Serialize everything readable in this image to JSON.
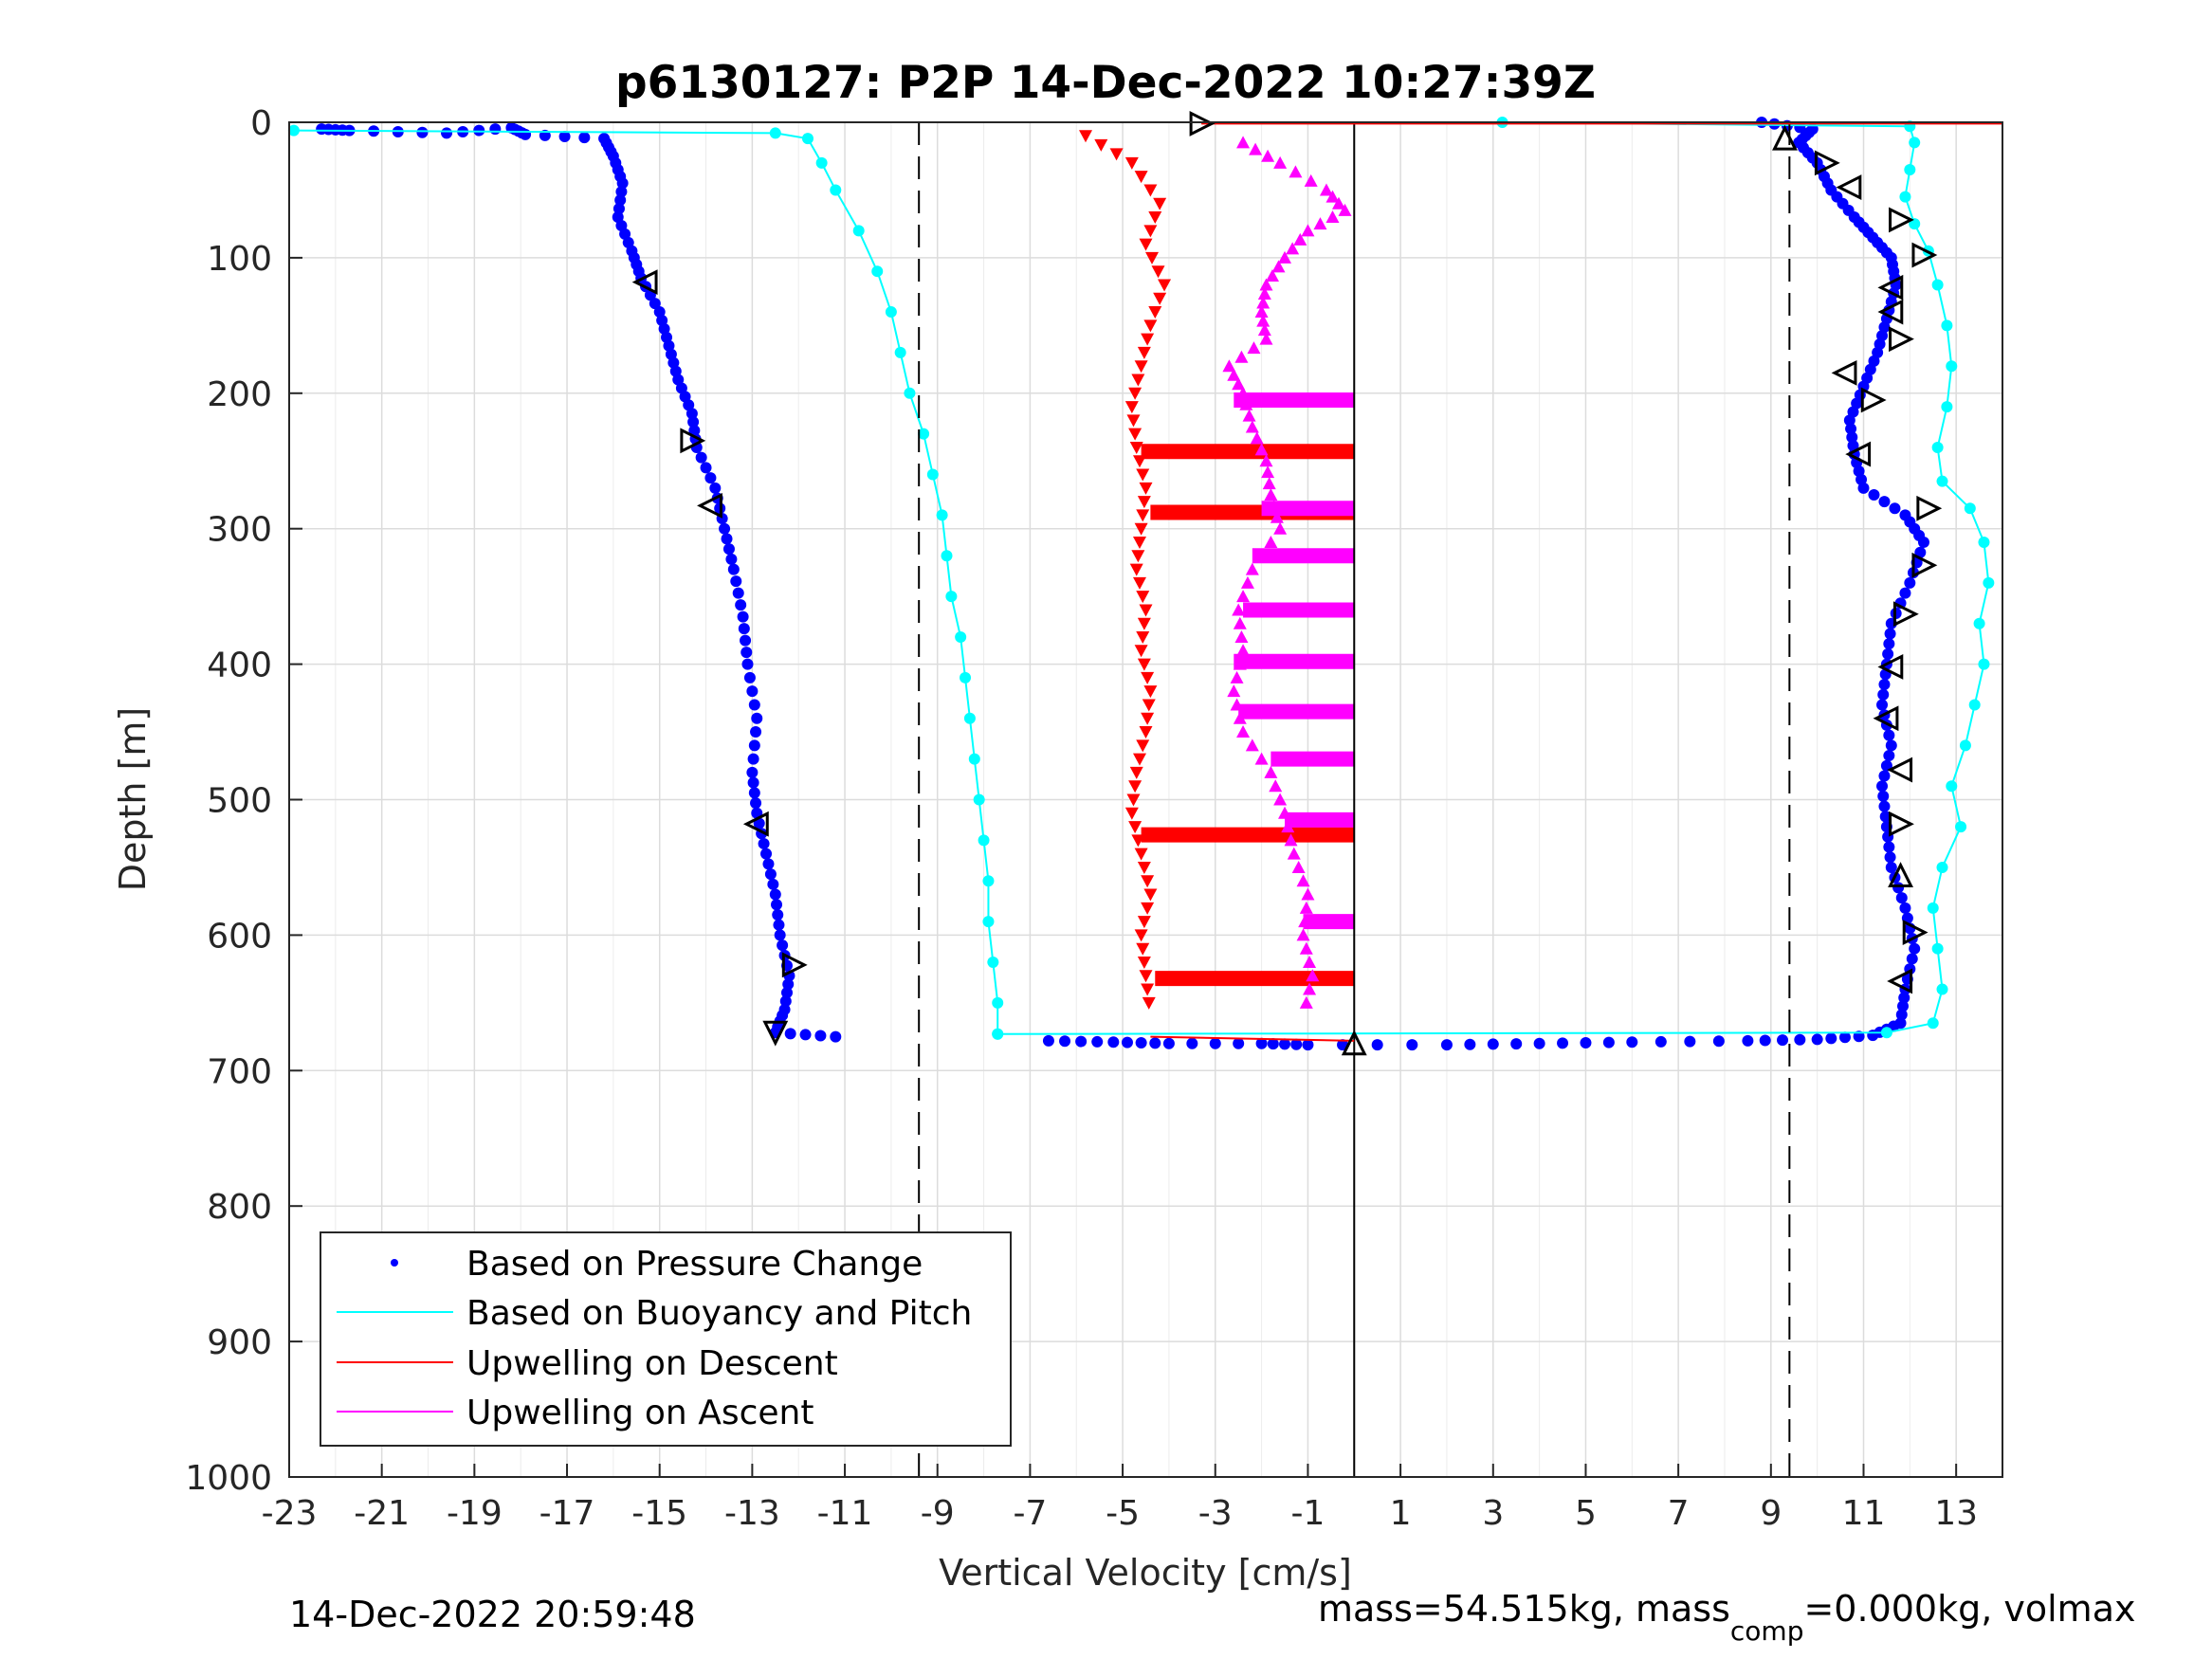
{
  "chart_data": {
    "type": "scatter",
    "title": "p6130127: P2P 14-Dec-2022 10:27:39Z",
    "xlabel": "Vertical Velocity [cm/s]",
    "ylabel": "Depth [m]",
    "xlim": [
      -23,
      14
    ],
    "ylim": [
      0,
      1000
    ],
    "y_reversed": true,
    "grid": true,
    "x_ticks": [
      -23,
      -21,
      -19,
      -17,
      -15,
      -13,
      -11,
      -9,
      -7,
      -5,
      -3,
      -1,
      1,
      3,
      5,
      7,
      9,
      11,
      13
    ],
    "y_ticks": [
      0,
      100,
      200,
      300,
      400,
      500,
      600,
      700,
      800,
      900,
      1000
    ],
    "reference_lines": [
      {
        "x": -9.4,
        "style": "dashed",
        "color": "#000000"
      },
      {
        "x": 9.4,
        "style": "dashed",
        "color": "#000000"
      },
      {
        "x": 0,
        "style": "solid",
        "color": "#000000"
      }
    ],
    "legend": {
      "placement": "bottom-left",
      "entries": [
        {
          "label": "Based on Pressure Change",
          "color": "#0000ff",
          "marker": "dot"
        },
        {
          "label": "Based on Buoyancy and Pitch",
          "color": "#00ffff",
          "marker": "line"
        },
        {
          "label": "Upwelling on Descent",
          "color": "#ff0000",
          "marker": "line"
        },
        {
          "label": "Upwelling on Ascent",
          "color": "#ff00ff",
          "marker": "line"
        }
      ]
    },
    "series": [
      {
        "name": "Based on Pressure Change",
        "color": "#0000ff",
        "role": "descent",
        "points": [
          [
            -22.3,
            5
          ],
          [
            -21.7,
            6
          ],
          [
            -19.6,
            8
          ],
          [
            -18.2,
            4
          ],
          [
            -17.9,
            9
          ],
          [
            -16.2,
            12
          ],
          [
            -16.0,
            25
          ],
          [
            -15.8,
            45
          ],
          [
            -15.9,
            70
          ],
          [
            -15.6,
            95
          ],
          [
            -15.4,
            115
          ],
          [
            -15.0,
            140
          ],
          [
            -14.8,
            165
          ],
          [
            -14.6,
            190
          ],
          [
            -14.3,
            215
          ],
          [
            -14.2,
            240
          ],
          [
            -13.8,
            270
          ],
          [
            -13.6,
            300
          ],
          [
            -13.4,
            330
          ],
          [
            -13.2,
            365
          ],
          [
            -13.1,
            400
          ],
          [
            -12.9,
            440
          ],
          [
            -13.0,
            480
          ],
          [
            -12.9,
            510
          ],
          [
            -12.7,
            540
          ],
          [
            -12.5,
            570
          ],
          [
            -12.4,
            600
          ],
          [
            -12.2,
            630
          ],
          [
            -12.3,
            655
          ],
          [
            -12.5,
            672
          ],
          [
            -11.2,
            675
          ]
        ]
      },
      {
        "name": "Based on Pressure Change",
        "color": "#0000ff",
        "role": "ascent",
        "points": [
          [
            -6.6,
            678
          ],
          [
            -5.2,
            679
          ],
          [
            -4.0,
            680
          ],
          [
            -2.0,
            680
          ],
          [
            -1.0,
            681
          ],
          [
            2.0,
            681
          ],
          [
            4.0,
            680
          ],
          [
            6.0,
            679
          ],
          [
            8.5,
            678
          ],
          [
            10.0,
            677
          ],
          [
            11.2,
            674
          ],
          [
            11.8,
            665
          ],
          [
            11.9,
            640
          ],
          [
            12.1,
            610
          ],
          [
            11.9,
            580
          ],
          [
            11.6,
            550
          ],
          [
            11.5,
            520
          ],
          [
            11.4,
            490
          ],
          [
            11.6,
            460
          ],
          [
            11.4,
            430
          ],
          [
            11.5,
            400
          ],
          [
            11.6,
            370
          ],
          [
            12.0,
            340
          ],
          [
            12.3,
            310
          ],
          [
            11.9,
            290
          ],
          [
            11.0,
            270
          ],
          [
            10.8,
            245
          ],
          [
            10.7,
            220
          ],
          [
            11.0,
            195
          ],
          [
            11.3,
            170
          ],
          [
            11.5,
            145
          ],
          [
            11.7,
            120
          ],
          [
            11.6,
            100
          ],
          [
            11.2,
            85
          ],
          [
            10.8,
            70
          ],
          [
            10.3,
            50
          ],
          [
            10.0,
            30
          ],
          [
            9.6,
            15
          ],
          [
            9.9,
            5
          ],
          [
            8.8,
            0
          ]
        ]
      },
      {
        "name": "Based on Buoyancy and Pitch",
        "color": "#00ffff",
        "role": "descent",
        "points": [
          [
            -22.9,
            6
          ],
          [
            -12.5,
            8
          ],
          [
            -11.8,
            12
          ],
          [
            -11.5,
            30
          ],
          [
            -11.2,
            50
          ],
          [
            -10.7,
            80
          ],
          [
            -10.3,
            110
          ],
          [
            -10.0,
            140
          ],
          [
            -9.8,
            170
          ],
          [
            -9.6,
            200
          ],
          [
            -9.3,
            230
          ],
          [
            -9.1,
            260
          ],
          [
            -8.9,
            290
          ],
          [
            -8.8,
            320
          ],
          [
            -8.7,
            350
          ],
          [
            -8.5,
            380
          ],
          [
            -8.4,
            410
          ],
          [
            -8.3,
            440
          ],
          [
            -8.2,
            470
          ],
          [
            -8.1,
            500
          ],
          [
            -8.0,
            530
          ],
          [
            -7.9,
            560
          ],
          [
            -7.9,
            590
          ],
          [
            -7.8,
            620
          ],
          [
            -7.7,
            650
          ],
          [
            -7.7,
            673
          ]
        ]
      },
      {
        "name": "Based on Buoyancy and Pitch",
        "color": "#00ffff",
        "role": "ascent",
        "points": [
          [
            -7.7,
            673
          ],
          [
            11.5,
            672
          ],
          [
            12.5,
            665
          ],
          [
            12.7,
            640
          ],
          [
            12.6,
            610
          ],
          [
            12.5,
            580
          ],
          [
            12.7,
            550
          ],
          [
            13.1,
            520
          ],
          [
            12.9,
            490
          ],
          [
            13.2,
            460
          ],
          [
            13.4,
            430
          ],
          [
            13.6,
            400
          ],
          [
            13.5,
            370
          ],
          [
            13.7,
            340
          ],
          [
            13.6,
            310
          ],
          [
            13.3,
            285
          ],
          [
            12.7,
            265
          ],
          [
            12.6,
            240
          ],
          [
            12.8,
            210
          ],
          [
            12.9,
            180
          ],
          [
            12.8,
            150
          ],
          [
            12.6,
            120
          ],
          [
            12.4,
            95
          ],
          [
            12.1,
            75
          ],
          [
            11.9,
            55
          ],
          [
            12.0,
            35
          ],
          [
            12.1,
            15
          ],
          [
            12.0,
            3
          ],
          [
            3.2,
            0
          ]
        ]
      },
      {
        "name": "Upwelling on Descent",
        "color": "#ff0000",
        "points": [
          [
            -5.8,
            10
          ],
          [
            -4.8,
            30
          ],
          [
            -4.2,
            60
          ],
          [
            -4.5,
            90
          ],
          [
            -4.1,
            120
          ],
          [
            -4.4,
            150
          ],
          [
            -4.6,
            180
          ],
          [
            -4.8,
            210
          ],
          [
            -4.7,
            240
          ],
          [
            -4.5,
            270
          ],
          [
            -4.6,
            300
          ],
          [
            -4.7,
            330
          ],
          [
            -4.5,
            360
          ],
          [
            -4.6,
            390
          ],
          [
            -4.4,
            420
          ],
          [
            -4.5,
            450
          ],
          [
            -4.7,
            480
          ],
          [
            -4.8,
            510
          ],
          [
            -4.6,
            540
          ],
          [
            -4.4,
            570
          ],
          [
            -4.6,
            600
          ],
          [
            -4.5,
            630
          ],
          [
            -4.4,
            660
          ]
        ]
      },
      {
        "name": "Upwelling on Ascent",
        "color": "#ff00ff",
        "points": [
          [
            -2.4,
            15
          ],
          [
            -1.6,
            30
          ],
          [
            -0.6,
            50
          ],
          [
            -0.2,
            65
          ],
          [
            -1.0,
            80
          ],
          [
            -1.5,
            100
          ],
          [
            -1.9,
            120
          ],
          [
            -2.0,
            140
          ],
          [
            -1.9,
            160
          ],
          [
            -2.7,
            180
          ],
          [
            -2.4,
            200
          ],
          [
            -2.2,
            225
          ],
          [
            -1.9,
            250
          ],
          [
            -1.8,
            275
          ],
          [
            -1.6,
            300
          ],
          [
            -2.2,
            330
          ],
          [
            -2.5,
            360
          ],
          [
            -2.4,
            390
          ],
          [
            -2.6,
            420
          ],
          [
            -2.4,
            450
          ],
          [
            -1.8,
            480
          ],
          [
            -1.5,
            510
          ],
          [
            -1.3,
            540
          ],
          [
            -1.0,
            570
          ],
          [
            -1.1,
            600
          ],
          [
            -0.9,
            630
          ],
          [
            -1.1,
            660
          ]
        ]
      }
    ],
    "bursts": [
      {
        "color": "#ff0000",
        "depth": 243,
        "x_from": -4.6,
        "x_to": 0
      },
      {
        "color": "#ff0000",
        "depth": 288,
        "x_from": -4.4,
        "x_to": 0
      },
      {
        "color": "#ff0000",
        "depth": 526,
        "x_from": -4.6,
        "x_to": 0
      },
      {
        "color": "#ff0000",
        "depth": 632,
        "x_from": -4.3,
        "x_to": 0
      },
      {
        "color": "#ff00ff",
        "depth": 205,
        "x_from": -2.6,
        "x_to": 0
      },
      {
        "color": "#ff00ff",
        "depth": 285,
        "x_from": -2.0,
        "x_to": 0
      },
      {
        "color": "#ff00ff",
        "depth": 320,
        "x_from": -2.2,
        "x_to": 0
      },
      {
        "color": "#ff00ff",
        "depth": 360,
        "x_from": -2.4,
        "x_to": 0
      },
      {
        "color": "#ff00ff",
        "depth": 398,
        "x_from": -2.6,
        "x_to": 0
      },
      {
        "color": "#ff00ff",
        "depth": 435,
        "x_from": -2.5,
        "x_to": 0
      },
      {
        "color": "#ff00ff",
        "depth": 470,
        "x_from": -1.8,
        "x_to": 0
      },
      {
        "color": "#ff00ff",
        "depth": 515,
        "x_from": -1.5,
        "x_to": 0
      },
      {
        "color": "#ff00ff",
        "depth": 590,
        "x_from": -1.1,
        "x_to": 0
      }
    ],
    "triangle_markers": [
      [
        -3.3,
        1,
        "right"
      ],
      [
        -15.3,
        118,
        "left"
      ],
      [
        -14.3,
        235,
        "right"
      ],
      [
        -13.9,
        283,
        "left"
      ],
      [
        -12.9,
        518,
        "left"
      ],
      [
        -12.1,
        622,
        "right"
      ],
      [
        -12.5,
        672,
        "down"
      ],
      [
        9.3,
        12,
        "up"
      ],
      [
        10.2,
        30,
        "right"
      ],
      [
        10.7,
        48,
        "left"
      ],
      [
        11.8,
        72,
        "right"
      ],
      [
        12.3,
        98,
        "right"
      ],
      [
        11.6,
        122,
        "left"
      ],
      [
        11.6,
        140,
        "left"
      ],
      [
        11.8,
        160,
        "right"
      ],
      [
        10.6,
        185,
        "left"
      ],
      [
        11.2,
        205,
        "right"
      ],
      [
        10.9,
        245,
        "left"
      ],
      [
        12.4,
        285,
        "right"
      ],
      [
        12.3,
        327,
        "right"
      ],
      [
        11.9,
        363,
        "right"
      ],
      [
        11.6,
        402,
        "left"
      ],
      [
        11.5,
        440,
        "left"
      ],
      [
        11.8,
        478,
        "left"
      ],
      [
        11.8,
        518,
        "right"
      ],
      [
        11.8,
        556,
        "up"
      ],
      [
        12.1,
        598,
        "right"
      ],
      [
        11.8,
        634,
        "left"
      ],
      [
        0,
        680,
        "up"
      ]
    ]
  },
  "footer": {
    "timestamp": "14-Dec-2022 20:59:48",
    "mass_part1": "mass=54.515kg, mass",
    "mass_sub": "comp",
    "mass_part2": "=0.000kg, volmax"
  }
}
